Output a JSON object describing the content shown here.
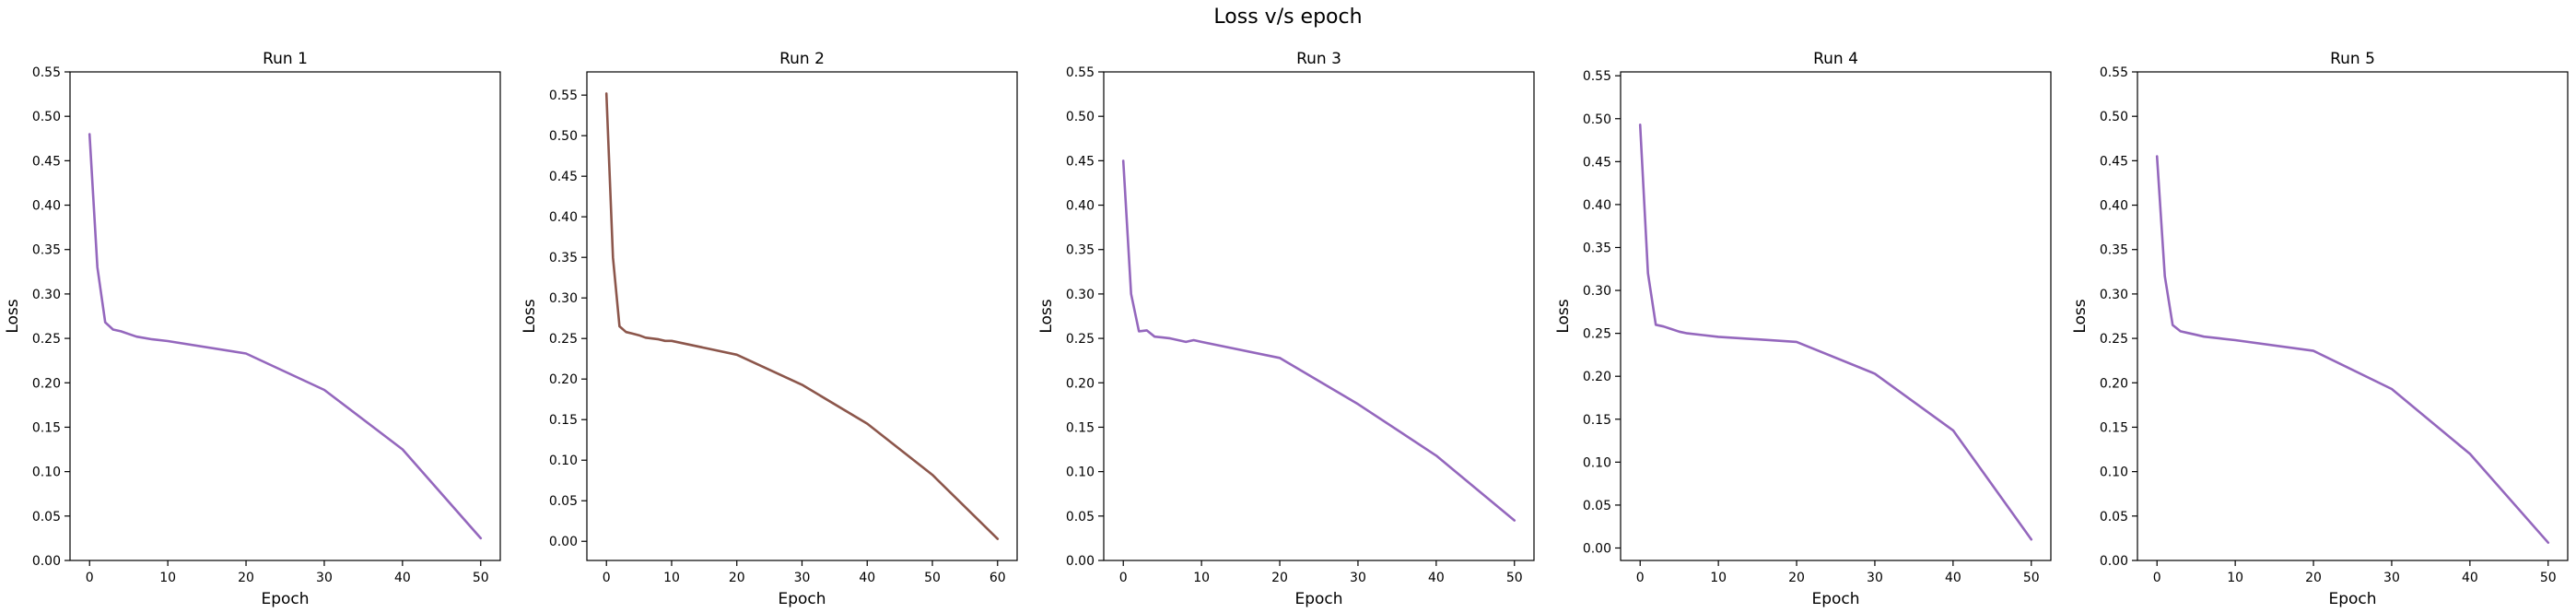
{
  "figure_title": "Loss v/s epoch",
  "chart_data": [
    {
      "type": "line",
      "title": "Run 1",
      "xlabel": "Epoch",
      "ylabel": "Loss",
      "xlim": [
        -2.5,
        52.5
      ],
      "ylim": [
        0.0,
        0.55
      ],
      "xticks": [
        0,
        10,
        20,
        30,
        40,
        50
      ],
      "yticks": [
        0.0,
        0.05,
        0.1,
        0.15,
        0.2,
        0.25,
        0.3,
        0.35,
        0.4,
        0.45,
        0.5,
        0.55
      ],
      "grid": false,
      "series": [
        {
          "color": "#9467bd",
          "x": [
            0,
            1,
            2,
            3,
            4,
            5,
            6,
            8,
            10,
            20,
            30,
            40,
            50
          ],
          "y": [
            0.48,
            0.33,
            0.268,
            0.26,
            0.258,
            0.255,
            0.252,
            0.249,
            0.247,
            0.233,
            0.192,
            0.125,
            0.025
          ]
        }
      ]
    },
    {
      "type": "line",
      "title": "Run 2",
      "xlabel": "Epoch",
      "ylabel": "Loss",
      "xlim": [
        -3,
        63
      ],
      "ylim": [
        -0.0236,
        0.5786
      ],
      "xticks": [
        0,
        10,
        20,
        30,
        40,
        50,
        60
      ],
      "yticks": [
        0.0,
        0.05,
        0.1,
        0.15,
        0.2,
        0.25,
        0.3,
        0.35,
        0.4,
        0.45,
        0.5,
        0.55
      ],
      "grid": false,
      "series": [
        {
          "color": "#8c564b",
          "x": [
            0,
            1,
            2,
            3,
            4,
            5,
            6,
            7,
            8,
            9,
            10,
            20,
            30,
            40,
            50,
            60
          ],
          "y": [
            0.552,
            0.35,
            0.265,
            0.258,
            0.256,
            0.254,
            0.251,
            0.25,
            0.249,
            0.247,
            0.247,
            0.23,
            0.193,
            0.145,
            0.082,
            0.003
          ]
        }
      ]
    },
    {
      "type": "line",
      "title": "Run 3",
      "xlabel": "Epoch",
      "ylabel": "Loss",
      "xlim": [
        -2.5,
        52.5
      ],
      "ylim": [
        0.0,
        0.55
      ],
      "xticks": [
        0,
        10,
        20,
        30,
        40,
        50
      ],
      "yticks": [
        0.0,
        0.05,
        0.1,
        0.15,
        0.2,
        0.25,
        0.3,
        0.35,
        0.4,
        0.45,
        0.5,
        0.55
      ],
      "grid": false,
      "series": [
        {
          "color": "#9467bd",
          "x": [
            0,
            1,
            2,
            3,
            4,
            5,
            6,
            7,
            8,
            9,
            10,
            20,
            30,
            40,
            50
          ],
          "y": [
            0.45,
            0.3,
            0.258,
            0.259,
            0.252,
            0.251,
            0.25,
            0.248,
            0.246,
            0.248,
            0.246,
            0.228,
            0.176,
            0.118,
            0.045
          ]
        }
      ]
    },
    {
      "type": "line",
      "title": "Run 4",
      "xlabel": "Epoch",
      "ylabel": "Loss",
      "xlim": [
        -2.5,
        52.5
      ],
      "ylim": [
        -0.0145,
        0.5545
      ],
      "xticks": [
        0,
        10,
        20,
        30,
        40,
        50
      ],
      "yticks": [
        0.0,
        0.05,
        0.1,
        0.15,
        0.2,
        0.25,
        0.3,
        0.35,
        0.4,
        0.45,
        0.5,
        0.55
      ],
      "grid": false,
      "series": [
        {
          "color": "#9467bd",
          "x": [
            0,
            1,
            2,
            3,
            4,
            5,
            6,
            8,
            10,
            20,
            30,
            40,
            50
          ],
          "y": [
            0.493,
            0.32,
            0.26,
            0.258,
            0.255,
            0.252,
            0.25,
            0.248,
            0.246,
            0.24,
            0.203,
            0.137,
            0.01
          ]
        }
      ]
    },
    {
      "type": "line",
      "title": "Run 5",
      "xlabel": "Epoch",
      "ylabel": "Loss",
      "xlim": [
        -2.5,
        52.5
      ],
      "ylim": [
        0.0,
        0.55
      ],
      "xticks": [
        0,
        10,
        20,
        30,
        40,
        50
      ],
      "yticks": [
        0.0,
        0.05,
        0.1,
        0.15,
        0.2,
        0.25,
        0.3,
        0.35,
        0.4,
        0.45,
        0.5,
        0.55
      ],
      "grid": false,
      "series": [
        {
          "color": "#9467bd",
          "x": [
            0,
            1,
            2,
            3,
            4,
            5,
            6,
            8,
            10,
            20,
            30,
            40,
            50
          ],
          "y": [
            0.455,
            0.32,
            0.265,
            0.258,
            0.256,
            0.254,
            0.252,
            0.25,
            0.248,
            0.236,
            0.193,
            0.12,
            0.02
          ]
        }
      ]
    }
  ]
}
